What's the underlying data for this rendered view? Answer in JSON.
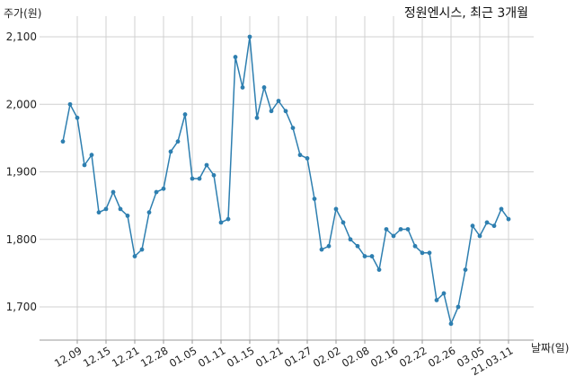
{
  "chart_data": {
    "type": "line",
    "title": "정원엔시스, 최근 3개월",
    "ylabel": "주가(원)",
    "xlabel": "날짜(일)",
    "ylim": [
      1650,
      2110
    ],
    "yticks": [
      1700,
      1800,
      1900,
      2000,
      2100
    ],
    "ytick_labels": [
      "1,700",
      "1,800",
      "1,900",
      "2,000",
      "2,100"
    ],
    "xtick_labels": [
      "12.09",
      "12.15",
      "12.21",
      "12.28",
      "01.05",
      "01.11",
      "01.15",
      "01.21",
      "01.27",
      "02.02",
      "02.08",
      "02.16",
      "02.22",
      "02.26",
      "03.05",
      "21.03.11"
    ],
    "xtick_index": [
      2,
      6,
      10,
      14,
      18,
      22,
      26,
      30,
      34,
      38,
      42,
      46,
      50,
      54,
      58,
      62
    ],
    "grid": true,
    "color": "#2e7fb0",
    "series": [
      {
        "values": [
          1945,
          2000,
          1980,
          1910,
          1925,
          1840,
          1845,
          1870,
          1845,
          1835,
          1775,
          1785,
          1840,
          1870,
          1875,
          1930,
          1945,
          1985,
          1890,
          1890,
          1910,
          1895,
          1825,
          1830,
          2070,
          2025,
          2100,
          1980,
          2025,
          1990,
          2005,
          1990,
          1965,
          1925,
          1920,
          1860,
          1785,
          1790,
          1845,
          1825,
          1800,
          1790,
          1775,
          1775,
          1755,
          1815,
          1805,
          1815,
          1815,
          1790,
          1780,
          1780,
          1710,
          1720,
          1675,
          1700,
          1755,
          1820,
          1805,
          1825,
          1820,
          1845,
          1830
        ]
      }
    ]
  }
}
